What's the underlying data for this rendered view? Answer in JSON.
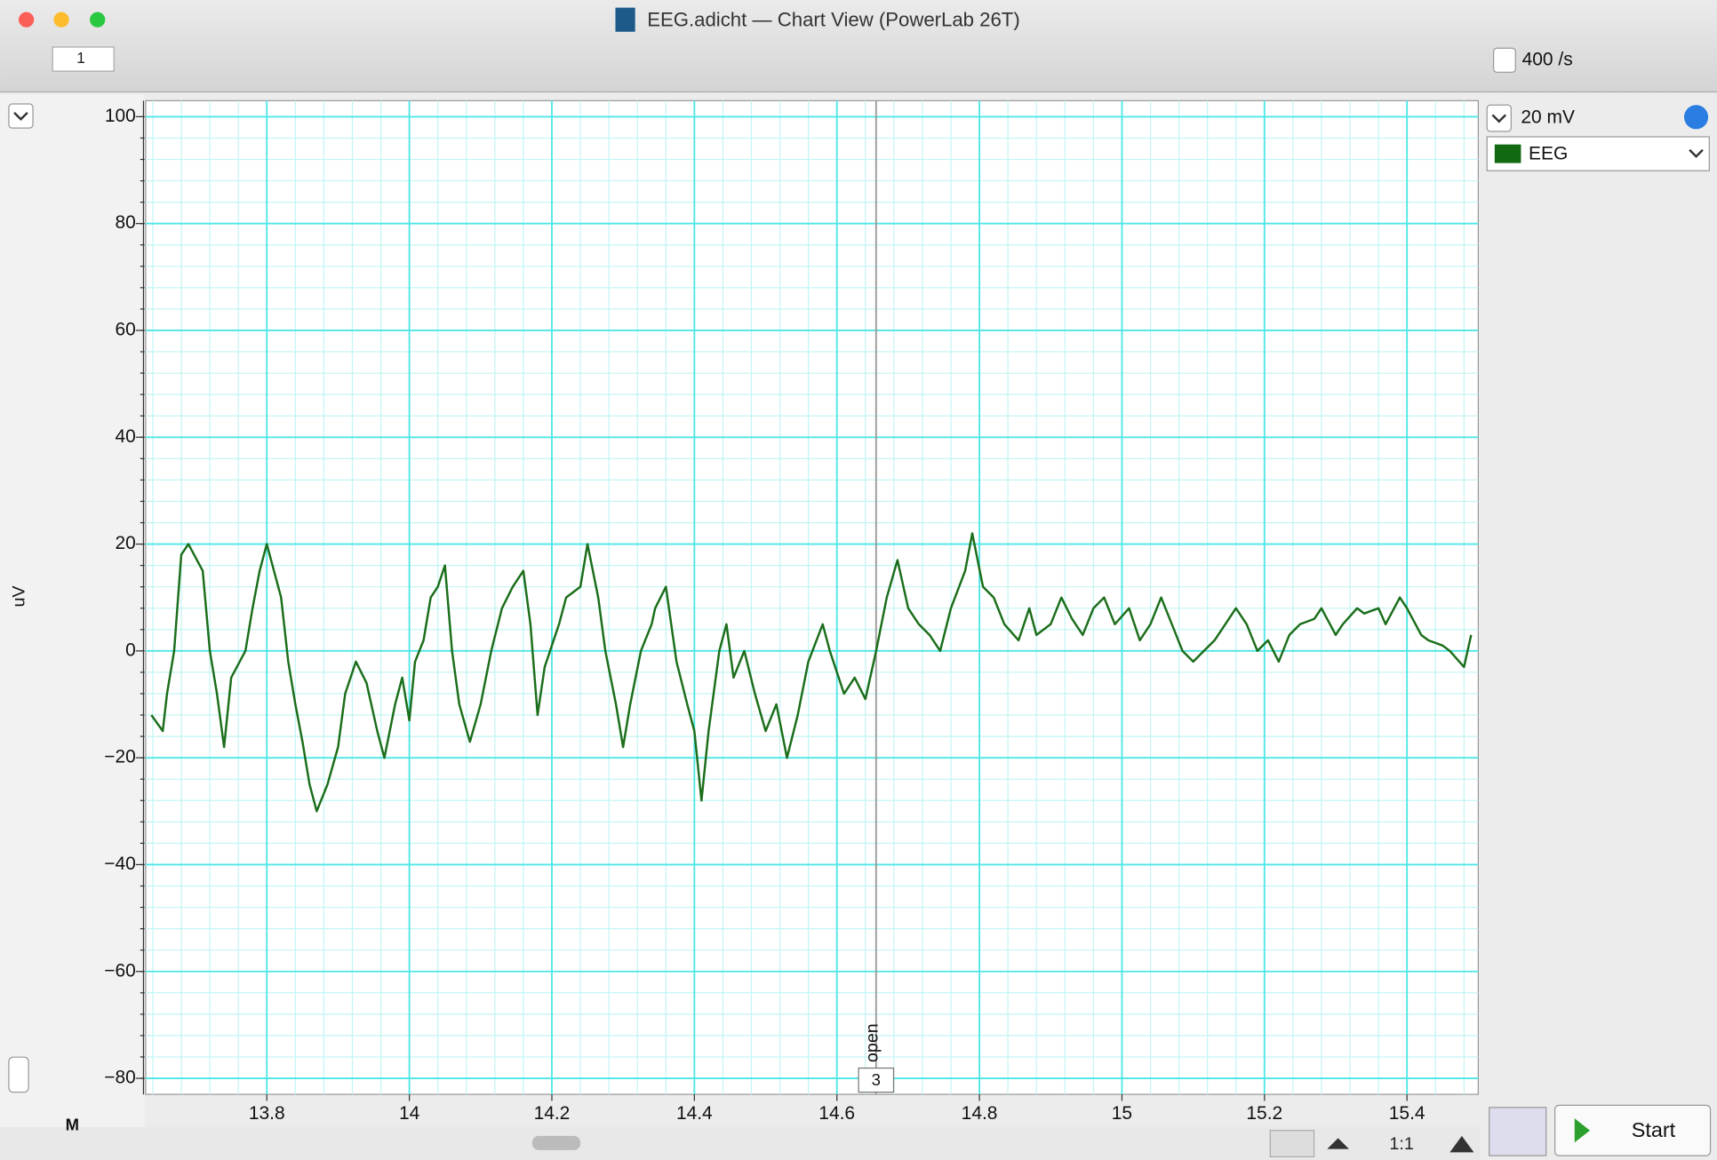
{
  "window": {
    "title": "EEG.adicht — Chart View (PowerLab 26T)",
    "page_field": "1",
    "sample_rate": "400 /s",
    "range": "20 mV",
    "channel": "EEG",
    "marker_button": "M",
    "zoom": "1:1",
    "start_button": "Start"
  },
  "chart_data": {
    "type": "line",
    "ylabel": "uV",
    "xlim": [
      13.63,
      15.5
    ],
    "ylim": [
      -83,
      103
    ],
    "xticks": [
      13.8,
      14,
      14.2,
      14.4,
      14.6,
      14.8,
      15,
      15.2,
      15.4
    ],
    "yticks": [
      100,
      80,
      60,
      40,
      20,
      0,
      {
        "value": -20,
        "label": "−20"
      },
      {
        "value": -40,
        "label": "−40"
      },
      {
        "value": -60,
        "label": "−60"
      },
      {
        "value": -80,
        "label": "−80"
      }
    ],
    "grid": true,
    "minor_divisions": 5,
    "grid_color": "#4fe6e6",
    "minor_grid_color": "#c4f4f4",
    "comments": [
      {
        "x": 14.655,
        "label": "open",
        "number": "3"
      }
    ],
    "series": [
      {
        "name": "EEG",
        "color": "#1b6e1b",
        "x": [
          13.638,
          13.654,
          13.66,
          13.67,
          13.68,
          13.69,
          13.71,
          13.72,
          13.73,
          13.74,
          13.75,
          13.77,
          13.78,
          13.79,
          13.8,
          13.82,
          13.83,
          13.84,
          13.85,
          13.86,
          13.87,
          13.885,
          13.9,
          13.91,
          13.925,
          13.94,
          13.955,
          13.965,
          13.98,
          13.99,
          14,
          14.008,
          14.02,
          14.03,
          14.04,
          14.05,
          14.06,
          14.07,
          14.085,
          14.1,
          14.115,
          14.13,
          14.145,
          14.16,
          14.17,
          14.18,
          14.19,
          14.21,
          14.22,
          14.24,
          14.25,
          14.265,
          14.275,
          14.29,
          14.3,
          14.31,
          14.325,
          14.34,
          14.345,
          14.36,
          14.375,
          14.39,
          14.4,
          14.41,
          14.42,
          14.435,
          14.445,
          14.455,
          14.47,
          14.485,
          14.5,
          14.515,
          14.53,
          14.545,
          14.56,
          14.58,
          14.59,
          14.61,
          14.625,
          14.64,
          14.655,
          14.67,
          14.685,
          14.7,
          14.715,
          14.73,
          14.745,
          14.76,
          14.78,
          14.79,
          14.805,
          14.82,
          14.835,
          14.855,
          14.87,
          14.88,
          14.9,
          14.915,
          14.93,
          14.945,
          14.96,
          14.975,
          14.99,
          15.01,
          15.025,
          15.04,
          15.055,
          15.07,
          15.085,
          15.1,
          15.115,
          15.13,
          15.145,
          15.16,
          15.175,
          15.19,
          15.205,
          15.22,
          15.235,
          15.25,
          15.27,
          15.28,
          15.3,
          15.31,
          15.33,
          15.34,
          15.36,
          15.37,
          15.39,
          15.4,
          15.42,
          15.43,
          15.45,
          15.46,
          15.48,
          15.49
        ],
        "values": [
          -12,
          -15,
          -8,
          0,
          18,
          20,
          15,
          0,
          -8,
          -18,
          -5,
          0,
          8,
          15,
          20,
          10,
          -2,
          -10,
          -17,
          -25,
          -30,
          -25,
          -18,
          -8,
          -2,
          -6,
          -15,
          -20,
          -10,
          -5,
          -13,
          -2,
          2,
          10,
          12,
          16,
          0,
          -10,
          -17,
          -10,
          0,
          8,
          12,
          15,
          5,
          -12,
          -3,
          5,
          10,
          12,
          20,
          10,
          0,
          -10,
          -18,
          -10,
          0,
          5,
          8,
          12,
          -2,
          -10,
          -15,
          -28,
          -15,
          0,
          5,
          -5,
          0,
          -8,
          -15,
          -10,
          -20,
          -12,
          -2,
          5,
          0,
          -8,
          -5,
          -9,
          0,
          10,
          17,
          8,
          5,
          3,
          0,
          8,
          15,
          22,
          12,
          10,
          5,
          2,
          8,
          3,
          5,
          10,
          6,
          3,
          8,
          10,
          5,
          8,
          2,
          5,
          10,
          5,
          0,
          -2,
          0,
          2,
          5,
          8,
          5,
          0,
          2,
          -2,
          3,
          5,
          6,
          8,
          3,
          5,
          8,
          7,
          8,
          5,
          10,
          8,
          3,
          2,
          1,
          0,
          -3,
          3
        ]
      }
    ]
  }
}
